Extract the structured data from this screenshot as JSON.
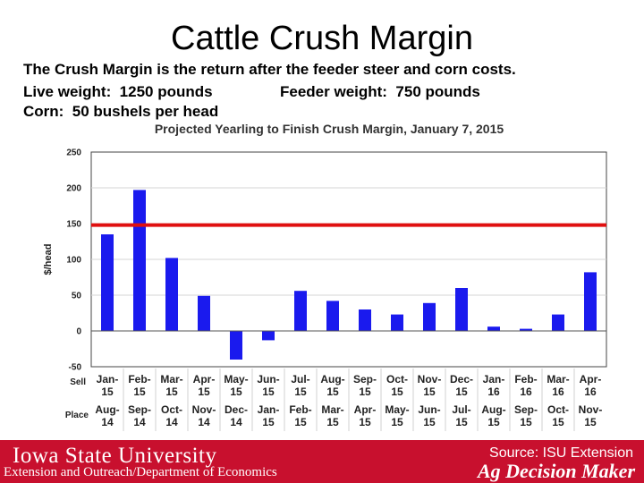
{
  "title": "Cattle Crush Margin",
  "description": {
    "line1": "The Crush Margin is the return after the feeder steer and corn costs.",
    "line2_left": "Live weight:  1250 pounds",
    "line2_right": "Feeder weight:  750 pounds",
    "line3": "Corn:  50 bushels per head"
  },
  "chart_data": {
    "type": "bar",
    "title": "Projected Yearling to Finish Crush Margin, January  7, 2015",
    "ylabel": "$/head",
    "ylim": [
      -50,
      250
    ],
    "yticks": [
      -50,
      0,
      50,
      100,
      150,
      200,
      250
    ],
    "sell_label": "Sell",
    "place_label": "Place",
    "sell": [
      "Jan-15",
      "Feb-15",
      "Mar-15",
      "Apr-15",
      "May-15",
      "Jun-15",
      "Jul-15",
      "Aug-15",
      "Sep-15",
      "Oct-15",
      "Nov-15",
      "Dec-15",
      "Jan-16",
      "Feb-16",
      "Mar-16",
      "Apr-16"
    ],
    "place": [
      "Aug-14",
      "Sep-14",
      "Oct-14",
      "Nov-14",
      "Dec-14",
      "Jan-15",
      "Feb-15",
      "Mar-15",
      "Apr-15",
      "May-15",
      "Jun-15",
      "Jul-15",
      "Aug-15",
      "Sep-15",
      "Oct-15",
      "Nov-15"
    ],
    "values": [
      135,
      197,
      102,
      49,
      -40,
      -13,
      56,
      42,
      30,
      23,
      39,
      60,
      6,
      3,
      23,
      82
    ],
    "reference_line": 148,
    "bar_color": "#1a1aee",
    "reference_color": "#e01010",
    "grid": true
  },
  "footer": {
    "university": "Iowa State University",
    "department": "Extension and Outreach/Department of Economics",
    "source": "Source: ISU Extension",
    "brand": "Ag Decision Maker"
  }
}
